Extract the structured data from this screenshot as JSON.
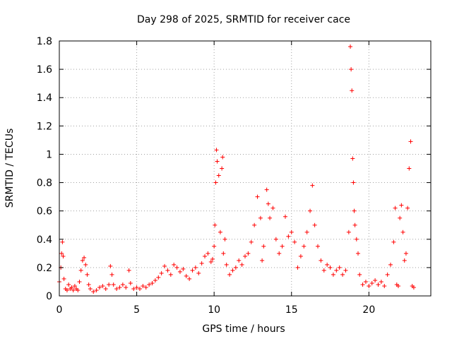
{
  "chart_data": {
    "type": "scatter",
    "title": "Day 298 of 2025, SRMTID for receiver cace",
    "xlabel": "GPS time / hours",
    "ylabel": "SRMTID / TECUs",
    "xlim": [
      0,
      24
    ],
    "ylim": [
      0,
      1.8
    ],
    "xticks": [
      0,
      5,
      10,
      15,
      20
    ],
    "xtick_labels": [
      "0",
      "5",
      "10",
      "15",
      "20"
    ],
    "yticks": [
      0,
      0.2,
      0.4,
      0.6,
      0.8,
      1.0,
      1.2,
      1.4,
      1.6,
      1.8
    ],
    "ytick_labels": [
      "0",
      "0.2",
      "0.4",
      "0.6",
      "0.8",
      "1",
      "1.2",
      "1.4",
      "1.6",
      "1.8"
    ],
    "grid": true,
    "marker": "+",
    "color": "#ff0000",
    "series": [
      {
        "name": "SRMTID",
        "points": [
          [
            0.0,
            0.1
          ],
          [
            0.1,
            0.2
          ],
          [
            0.15,
            0.3
          ],
          [
            0.2,
            0.38
          ],
          [
            0.25,
            0.28
          ],
          [
            0.3,
            0.12
          ],
          [
            0.4,
            0.05
          ],
          [
            0.5,
            0.04
          ],
          [
            0.6,
            0.08
          ],
          [
            0.7,
            0.05
          ],
          [
            0.8,
            0.06
          ],
          [
            0.9,
            0.04
          ],
          [
            1.0,
            0.07
          ],
          [
            1.1,
            0.05
          ],
          [
            1.2,
            0.04
          ],
          [
            1.3,
            0.1
          ],
          [
            1.4,
            0.18
          ],
          [
            1.5,
            0.25
          ],
          [
            1.6,
            0.27
          ],
          [
            1.7,
            0.22
          ],
          [
            1.8,
            0.15
          ],
          [
            1.9,
            0.08
          ],
          [
            2.0,
            0.05
          ],
          [
            2.2,
            0.03
          ],
          [
            2.4,
            0.04
          ],
          [
            2.6,
            0.06
          ],
          [
            2.8,
            0.07
          ],
          [
            3.0,
            0.05
          ],
          [
            3.2,
            0.08
          ],
          [
            3.3,
            0.21
          ],
          [
            3.4,
            0.15
          ],
          [
            3.5,
            0.08
          ],
          [
            3.7,
            0.05
          ],
          [
            3.9,
            0.06
          ],
          [
            4.1,
            0.08
          ],
          [
            4.3,
            0.06
          ],
          [
            4.5,
            0.18
          ],
          [
            4.6,
            0.09
          ],
          [
            4.8,
            0.05
          ],
          [
            5.0,
            0.06
          ],
          [
            5.2,
            0.05
          ],
          [
            5.4,
            0.07
          ],
          [
            5.6,
            0.06
          ],
          [
            5.8,
            0.08
          ],
          [
            6.0,
            0.09
          ],
          [
            6.2,
            0.11
          ],
          [
            6.4,
            0.13
          ],
          [
            6.6,
            0.16
          ],
          [
            6.8,
            0.21
          ],
          [
            7.0,
            0.18
          ],
          [
            7.2,
            0.15
          ],
          [
            7.4,
            0.22
          ],
          [
            7.6,
            0.2
          ],
          [
            7.8,
            0.17
          ],
          [
            8.0,
            0.19
          ],
          [
            8.2,
            0.14
          ],
          [
            8.4,
            0.12
          ],
          [
            8.6,
            0.18
          ],
          [
            8.8,
            0.2
          ],
          [
            9.0,
            0.16
          ],
          [
            9.2,
            0.23
          ],
          [
            9.4,
            0.28
          ],
          [
            9.6,
            0.3
          ],
          [
            9.8,
            0.24
          ],
          [
            9.9,
            0.26
          ],
          [
            10.0,
            0.35
          ],
          [
            10.05,
            0.5
          ],
          [
            10.1,
            0.8
          ],
          [
            10.15,
            1.03
          ],
          [
            10.2,
            0.95
          ],
          [
            10.3,
            0.85
          ],
          [
            10.4,
            0.45
          ],
          [
            10.5,
            0.9
          ],
          [
            10.55,
            0.98
          ],
          [
            10.6,
            0.3
          ],
          [
            10.7,
            0.4
          ],
          [
            10.8,
            0.22
          ],
          [
            11.0,
            0.15
          ],
          [
            11.2,
            0.18
          ],
          [
            11.4,
            0.2
          ],
          [
            11.6,
            0.25
          ],
          [
            11.8,
            0.22
          ],
          [
            12.0,
            0.28
          ],
          [
            12.2,
            0.3
          ],
          [
            12.4,
            0.38
          ],
          [
            12.6,
            0.5
          ],
          [
            12.8,
            0.7
          ],
          [
            13.0,
            0.55
          ],
          [
            13.1,
            0.25
          ],
          [
            13.2,
            0.35
          ],
          [
            13.4,
            0.75
          ],
          [
            13.5,
            0.65
          ],
          [
            13.6,
            0.55
          ],
          [
            13.8,
            0.62
          ],
          [
            14.0,
            0.4
          ],
          [
            14.2,
            0.3
          ],
          [
            14.4,
            0.35
          ],
          [
            14.6,
            0.56
          ],
          [
            14.8,
            0.42
          ],
          [
            15.0,
            0.45
          ],
          [
            15.2,
            0.38
          ],
          [
            15.4,
            0.2
          ],
          [
            15.6,
            0.28
          ],
          [
            15.8,
            0.35
          ],
          [
            16.0,
            0.45
          ],
          [
            16.2,
            0.6
          ],
          [
            16.35,
            0.78
          ],
          [
            16.5,
            0.5
          ],
          [
            16.7,
            0.35
          ],
          [
            16.9,
            0.25
          ],
          [
            17.1,
            0.18
          ],
          [
            17.3,
            0.22
          ],
          [
            17.5,
            0.2
          ],
          [
            17.7,
            0.15
          ],
          [
            17.9,
            0.18
          ],
          [
            18.1,
            0.2
          ],
          [
            18.3,
            0.15
          ],
          [
            18.5,
            0.18
          ],
          [
            18.7,
            0.45
          ],
          [
            18.8,
            1.76
          ],
          [
            18.85,
            1.6
          ],
          [
            18.9,
            1.45
          ],
          [
            18.95,
            0.97
          ],
          [
            19.0,
            0.8
          ],
          [
            19.05,
            0.6
          ],
          [
            19.1,
            0.5
          ],
          [
            19.2,
            0.4
          ],
          [
            19.3,
            0.3
          ],
          [
            19.4,
            0.15
          ],
          [
            19.6,
            0.08
          ],
          [
            19.8,
            0.1
          ],
          [
            20.0,
            0.07
          ],
          [
            20.2,
            0.09
          ],
          [
            20.4,
            0.11
          ],
          [
            20.6,
            0.08
          ],
          [
            20.8,
            0.1
          ],
          [
            21.0,
            0.07
          ],
          [
            21.2,
            0.15
          ],
          [
            21.4,
            0.22
          ],
          [
            21.6,
            0.38
          ],
          [
            21.7,
            0.62
          ],
          [
            21.8,
            0.08
          ],
          [
            21.9,
            0.07
          ],
          [
            22.0,
            0.55
          ],
          [
            22.1,
            0.64
          ],
          [
            22.2,
            0.45
          ],
          [
            22.3,
            0.25
          ],
          [
            22.4,
            0.3
          ],
          [
            22.5,
            0.62
          ],
          [
            22.6,
            0.9
          ],
          [
            22.7,
            1.09
          ],
          [
            22.8,
            0.07
          ],
          [
            22.9,
            0.06
          ]
        ]
      }
    ]
  }
}
